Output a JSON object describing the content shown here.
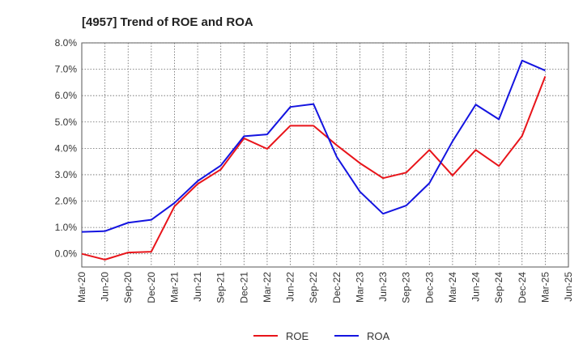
{
  "chart_data": {
    "type": "line",
    "title": "[4957]  Trend of ROE and ROA",
    "x": [
      "Mar-20",
      "Jun-20",
      "Sep-20",
      "Dec-20",
      "Mar-21",
      "Jun-21",
      "Sep-21",
      "Dec-21",
      "Mar-22",
      "Jun-22",
      "Sep-22",
      "Dec-22",
      "Mar-23",
      "Jun-23",
      "Sep-23",
      "Dec-23",
      "Mar-24",
      "Jun-24",
      "Sep-24",
      "Dec-24",
      "Mar-25",
      "Jun-25"
    ],
    "ylim": [
      -0.5,
      8.0
    ],
    "yticks": [
      0,
      1,
      2,
      3,
      4,
      5,
      6,
      7,
      8
    ],
    "ytick_labels": [
      "0.0%",
      "1.0%",
      "2.0%",
      "3.0%",
      "4.0%",
      "5.0%",
      "6.0%",
      "7.0%",
      "8.0%"
    ],
    "grid": true,
    "legend_position": "bottom",
    "series": [
      {
        "name": "ROE",
        "color": "#e8141a",
        "values": [
          0.0,
          -0.22,
          0.05,
          0.08,
          1.8,
          2.65,
          3.2,
          4.38,
          3.98,
          4.86,
          4.86,
          4.12,
          3.44,
          2.87,
          3.08,
          3.94,
          2.97,
          3.94,
          3.33,
          4.47,
          6.73,
          null
        ]
      },
      {
        "name": "ROA",
        "color": "#1414e0",
        "values": [
          0.83,
          0.86,
          1.18,
          1.29,
          1.93,
          2.76,
          3.35,
          4.46,
          4.53,
          5.57,
          5.68,
          3.68,
          2.36,
          1.52,
          1.83,
          2.68,
          4.27,
          5.66,
          5.1,
          7.33,
          6.95,
          null
        ]
      }
    ]
  }
}
